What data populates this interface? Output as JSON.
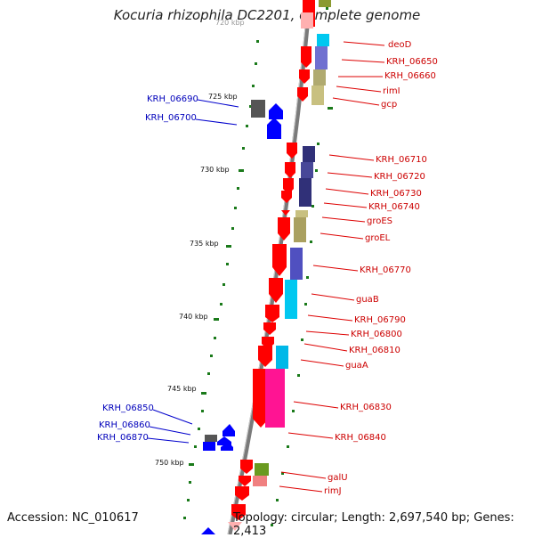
{
  "title": "Kocuria rhizophila DC2201, complete genome",
  "footer": {
    "accession": "Accession: NC_010617",
    "topology": "Topology: circular; Length: 2,697,540 bp; Genes: 2,413"
  },
  "scale_marks": [
    {
      "id": "kbp720",
      "label": "720 kbp"
    },
    {
      "id": "kbp725",
      "label": "725 kbp"
    },
    {
      "id": "kbp730",
      "label": "730 kbp"
    },
    {
      "id": "kbp735",
      "label": "735 kbp"
    },
    {
      "id": "kbp740",
      "label": "740 kbp"
    },
    {
      "id": "kbp745",
      "label": "745 kbp"
    },
    {
      "id": "kbp750",
      "label": "750 kbp"
    }
  ],
  "genes_right": [
    {
      "id": "deoD",
      "label": "deoD"
    },
    {
      "id": "KRH_06650",
      "label": "KRH_06650"
    },
    {
      "id": "KRH_06660",
      "label": "KRH_06660"
    },
    {
      "id": "rimI",
      "label": "rimI"
    },
    {
      "id": "gcp",
      "label": "gcp"
    },
    {
      "id": "KRH_06710",
      "label": "KRH_06710"
    },
    {
      "id": "KRH_06720",
      "label": "KRH_06720"
    },
    {
      "id": "KRH_06730",
      "label": "KRH_06730"
    },
    {
      "id": "KRH_06740",
      "label": "KRH_06740"
    },
    {
      "id": "groES",
      "label": "groES"
    },
    {
      "id": "groEL",
      "label": "groEL"
    },
    {
      "id": "KRH_06770",
      "label": "KRH_06770"
    },
    {
      "id": "guaB",
      "label": "guaB"
    },
    {
      "id": "KRH_06790",
      "label": "KRH_06790"
    },
    {
      "id": "KRH_06800",
      "label": "KRH_06800"
    },
    {
      "id": "KRH_06810",
      "label": "KRH_06810"
    },
    {
      "id": "guaA",
      "label": "guaA"
    },
    {
      "id": "KRH_06830",
      "label": "KRH_06830"
    },
    {
      "id": "KRH_06840",
      "label": "KRH_06840"
    },
    {
      "id": "galU",
      "label": "galU"
    },
    {
      "id": "rimJ",
      "label": "rimJ"
    }
  ],
  "genes_left": [
    {
      "id": "KRH_06690",
      "label": "KRH_06690"
    },
    {
      "id": "KRH_06700",
      "label": "KRH_06700"
    },
    {
      "id": "KRH_06850",
      "label": "KRH_06850"
    },
    {
      "id": "KRH_06860",
      "label": "KRH_06860"
    },
    {
      "id": "KRH_06870",
      "label": "KRH_06870"
    }
  ],
  "colors": {
    "forward_strand": "#ff0000",
    "reverse_strand": "#0000ff",
    "backbone": "#808080",
    "label_right": "#cc0000",
    "label_left": "#0000bb",
    "scale_dots": "#1a7a1a"
  }
}
